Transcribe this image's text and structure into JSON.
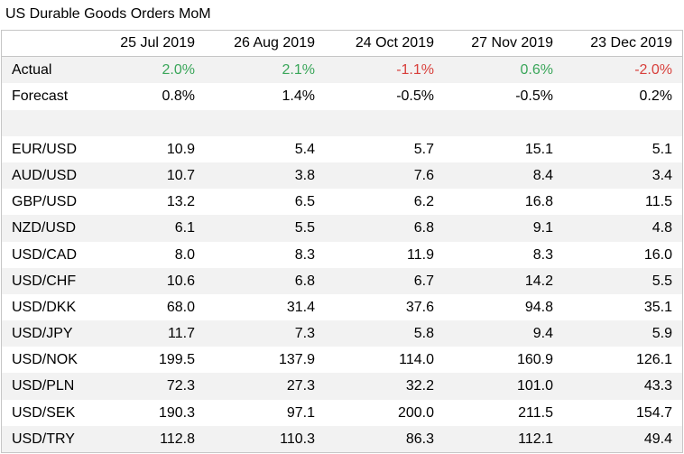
{
  "title": "US Durable Goods Orders MoM",
  "colors": {
    "positive": "#3aa65a",
    "negative": "#d8403c",
    "row_shade": "#f2f2f2"
  },
  "columns": [
    "25 Jul 2019",
    "26 Aug 2019",
    "24 Oct 2019",
    "27 Nov 2019",
    "23 Dec 2019"
  ],
  "actual": {
    "label": "Actual",
    "values": [
      "2.0%",
      "2.1%",
      "-1.1%",
      "0.6%",
      "-2.0%"
    ],
    "signs": [
      "pos",
      "pos",
      "neg",
      "pos",
      "neg"
    ]
  },
  "forecast": {
    "label": "Forecast",
    "values": [
      "0.8%",
      "1.4%",
      "-0.5%",
      "-0.5%",
      "0.2%"
    ]
  },
  "pairs": [
    {
      "label": "EUR/USD",
      "values": [
        "10.9",
        "5.4",
        "5.7",
        "15.1",
        "5.1"
      ]
    },
    {
      "label": "AUD/USD",
      "values": [
        "10.7",
        "3.8",
        "7.6",
        "8.4",
        "3.4"
      ]
    },
    {
      "label": "GBP/USD",
      "values": [
        "13.2",
        "6.5",
        "6.2",
        "16.8",
        "11.5"
      ]
    },
    {
      "label": "NZD/USD",
      "values": [
        "6.1",
        "5.5",
        "6.8",
        "9.1",
        "4.8"
      ]
    },
    {
      "label": "USD/CAD",
      "values": [
        "8.0",
        "8.3",
        "11.9",
        "8.3",
        "16.0"
      ]
    },
    {
      "label": "USD/CHF",
      "values": [
        "10.6",
        "6.8",
        "6.7",
        "14.2",
        "5.5"
      ]
    },
    {
      "label": "USD/DKK",
      "values": [
        "68.0",
        "31.4",
        "37.6",
        "94.8",
        "35.1"
      ]
    },
    {
      "label": "USD/JPY",
      "values": [
        "11.7",
        "7.3",
        "5.8",
        "9.4",
        "5.9"
      ]
    },
    {
      "label": "USD/NOK",
      "values": [
        "199.5",
        "137.9",
        "114.0",
        "160.9",
        "126.1"
      ]
    },
    {
      "label": "USD/PLN",
      "values": [
        "72.3",
        "27.3",
        "32.2",
        "101.0",
        "43.3"
      ]
    },
    {
      "label": "USD/SEK",
      "values": [
        "190.3",
        "97.1",
        "200.0",
        "211.5",
        "154.7"
      ]
    },
    {
      "label": "USD/TRY",
      "values": [
        "112.8",
        "110.3",
        "86.3",
        "112.1",
        "49.4"
      ]
    }
  ]
}
